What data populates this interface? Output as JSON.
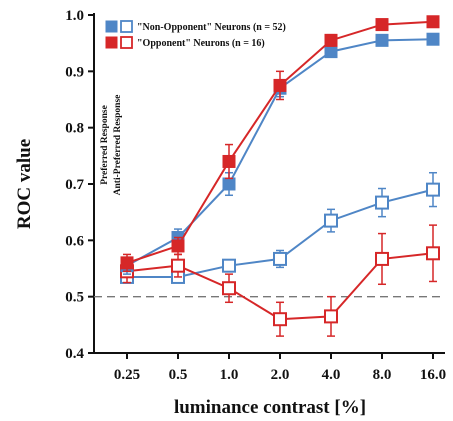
{
  "chart_data": {
    "type": "line",
    "xlabel": "luminance contrast [%]",
    "ylabel": "ROC value",
    "x_ticks": [
      "0.25",
      "0.5",
      "1.0",
      "2.0",
      "4.0",
      "8.0",
      "16.0"
    ],
    "y_ticks": [
      "0.4",
      "0.5",
      "0.6",
      "0.7",
      "0.8",
      "0.9",
      "1.0"
    ],
    "ylim": [
      0.4,
      1.0
    ],
    "reference_line": 0.5,
    "side_labels": [
      "Preferred Response",
      "Anti-Preferred Response"
    ],
    "legend": [
      {
        "label": "\"Non-Opponent\" Neurons (n = 52)",
        "color": "#4f86c6"
      },
      {
        "label": "\"Opponent\" Neurons (n = 16)",
        "color": "#d62728"
      }
    ],
    "series": [
      {
        "group": "Non-Opponent",
        "response": "Preferred",
        "marker": "filled",
        "color": "#4f86c6",
        "values": [
          0.555,
          0.605,
          0.7,
          0.87,
          0.935,
          0.955,
          0.957
        ],
        "errors": [
          0.015,
          0.015,
          0.02,
          0.015,
          0.01,
          0.008,
          0.008
        ]
      },
      {
        "group": "Opponent",
        "response": "Preferred",
        "marker": "filled",
        "color": "#d62728",
        "values": [
          0.56,
          0.59,
          0.74,
          0.875,
          0.955,
          0.983,
          0.988
        ],
        "errors": [
          0.015,
          0.015,
          0.03,
          0.025,
          0.01,
          0.006,
          0.005
        ]
      },
      {
        "group": "Non-Opponent",
        "response": "Anti-Preferred",
        "marker": "open",
        "color": "#4f86c6",
        "values": [
          0.535,
          0.535,
          0.555,
          0.567,
          0.635,
          0.667,
          0.69
        ],
        "errors": [
          0.01,
          0.01,
          0.01,
          0.015,
          0.02,
          0.025,
          0.03
        ]
      },
      {
        "group": "Opponent",
        "response": "Anti-Preferred",
        "marker": "open",
        "color": "#d62728",
        "values": [
          0.545,
          0.555,
          0.515,
          0.46,
          0.465,
          0.567,
          0.577
        ],
        "errors": [
          0.02,
          0.02,
          0.025,
          0.03,
          0.035,
          0.045,
          0.05
        ]
      }
    ]
  }
}
